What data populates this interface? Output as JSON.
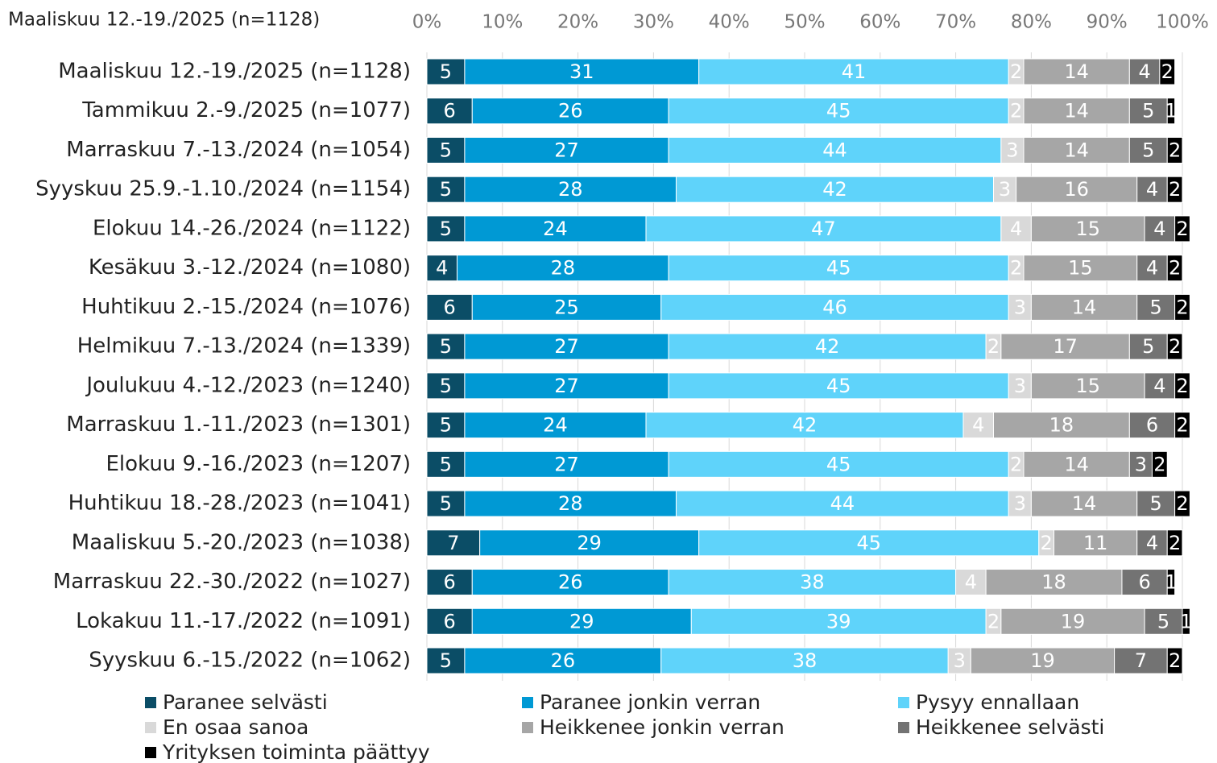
{
  "chart_data": {
    "type": "stacked-barh",
    "title": "Maaliskuu 12.-19./2025 (n=1128)",
    "categories": [
      "Maaliskuu 12.-19./2025 (n=1128)",
      "Tammikuu 2.-9./2025 (n=1077)",
      "Marraskuu 7.-13./2024 (n=1054)",
      "Syyskuu 25.9.-1.10./2024 (n=1154)",
      "Elokuu 14.-26./2024 (n=1122)",
      "Kesäkuu 3.-12./2024 (n=1080)",
      "Huhtikuu 2.-15./2024 (n=1076)",
      "Helmikuu 7.-13./2024 (n=1339)",
      "Joulukuu 4.-12./2023 (n=1240)",
      "Marraskuu 1.-11./2023 (n=1301)",
      "Elokuu 9.-16./2023 (n=1207)",
      "Huhtikuu 18.-28./2023 (n=1041)",
      "Maaliskuu 5.-20./2023 (n=1038)",
      "Marraskuu 22.-30./2022 (n=1027)",
      "Lokakuu 11.-17./2022 (n=1091)",
      "Syyskuu 6.-15./2022 (n=1062)"
    ],
    "series": [
      {
        "name": "Paranee selvästi",
        "color": "#0b4d66",
        "values": [
          5,
          6,
          5,
          5,
          5,
          4,
          6,
          5,
          5,
          5,
          5,
          5,
          7,
          6,
          6,
          5
        ]
      },
      {
        "name": "Paranee jonkin verran",
        "color": "#0099d4",
        "values": [
          31,
          26,
          27,
          28,
          24,
          28,
          25,
          27,
          27,
          24,
          27,
          28,
          29,
          26,
          29,
          26
        ]
      },
      {
        "name": "Pysyy ennallaan",
        "color": "#5fd3fa",
        "values": [
          41,
          45,
          44,
          42,
          47,
          45,
          46,
          42,
          45,
          42,
          45,
          44,
          45,
          38,
          39,
          38
        ]
      },
      {
        "name": "En osaa sanoa",
        "color": "#d9d9d9",
        "values": [
          2,
          2,
          3,
          3,
          4,
          2,
          3,
          2,
          3,
          4,
          2,
          3,
          2,
          4,
          2,
          3
        ]
      },
      {
        "name": "Heikkenee jonkin verran",
        "color": "#a6a6a6",
        "values": [
          14,
          14,
          14,
          16,
          15,
          15,
          14,
          17,
          15,
          18,
          14,
          14,
          11,
          18,
          19,
          19
        ]
      },
      {
        "name": "Heikkenee selvästi",
        "color": "#737373",
        "values": [
          4,
          5,
          5,
          4,
          4,
          4,
          5,
          5,
          4,
          6,
          3,
          5,
          4,
          6,
          5,
          7
        ]
      },
      {
        "name": "Yrityksen toiminta päättyy",
        "color": "#000000",
        "values": [
          2,
          1,
          2,
          2,
          2,
          2,
          2,
          2,
          2,
          2,
          2,
          2,
          2,
          1,
          1,
          2
        ]
      }
    ],
    "xlim": [
      0,
      100
    ],
    "xticks": [
      {
        "value": 0,
        "label": "0%"
      },
      {
        "value": 10,
        "label": "10%"
      },
      {
        "value": 20,
        "label": "20%"
      },
      {
        "value": 30,
        "label": "30%"
      },
      {
        "value": 40,
        "label": "40%"
      },
      {
        "value": 50,
        "label": "50%"
      },
      {
        "value": 60,
        "label": "60%"
      },
      {
        "value": 70,
        "label": "70%"
      },
      {
        "value": 80,
        "label": "80%"
      },
      {
        "value": 90,
        "label": "90%"
      },
      {
        "value": 100,
        "label": "100%"
      }
    ],
    "grid": true
  }
}
